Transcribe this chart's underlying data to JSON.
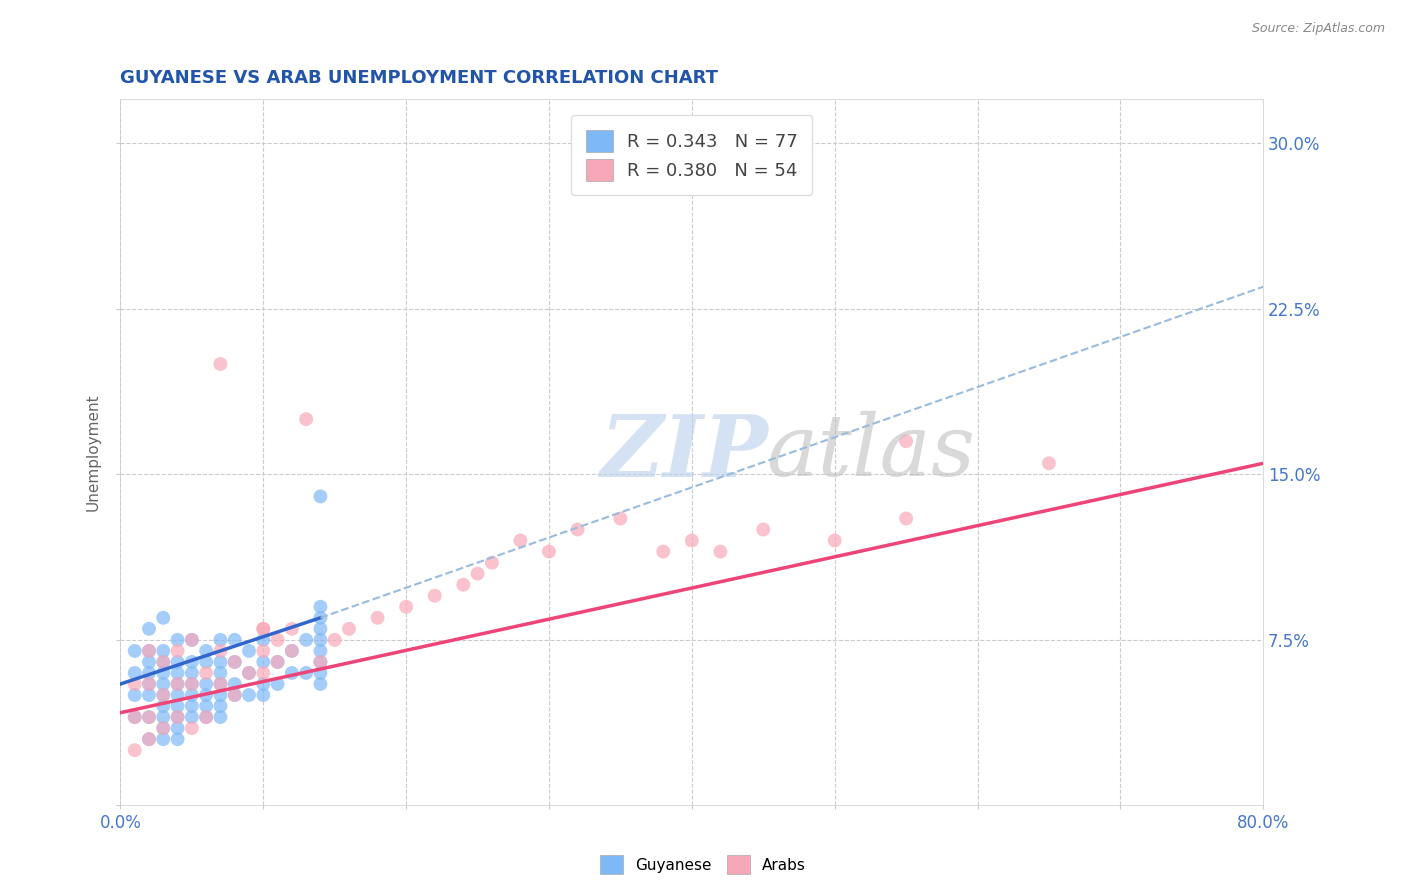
{
  "title": "GUYANESE VS ARAB UNEMPLOYMENT CORRELATION CHART",
  "source_text": "Source: ZipAtlas.com",
  "ylabel": "Unemployment",
  "xlim": [
    0.0,
    0.8
  ],
  "ylim": [
    0.0,
    0.32
  ],
  "xticks": [
    0.0,
    0.1,
    0.2,
    0.3,
    0.4,
    0.5,
    0.6,
    0.7,
    0.8
  ],
  "yticks": [
    0.0,
    0.075,
    0.15,
    0.225,
    0.3
  ],
  "yticklabels": [
    "",
    "7.5%",
    "15.0%",
    "22.5%",
    "30.0%"
  ],
  "grid_color": "#cccccc",
  "background_color": "#ffffff",
  "guyanese_color": "#7eb8f7",
  "arab_color": "#f7a8b8",
  "guyanese_line_color": "#3366cc",
  "arab_line_color": "#ee4477",
  "trendline_dashed_color": "#99bbdd",
  "legend_r1": "R = 0.343",
  "legend_n1": "N = 77",
  "legend_r2": "R = 0.380",
  "legend_n2": "N = 54",
  "title_color": "#2255aa",
  "label_color": "#4477cc",
  "guyanese_points_x": [
    0.01,
    0.01,
    0.01,
    0.01,
    0.02,
    0.02,
    0.02,
    0.02,
    0.02,
    0.02,
    0.02,
    0.02,
    0.03,
    0.03,
    0.03,
    0.03,
    0.03,
    0.03,
    0.03,
    0.03,
    0.03,
    0.03,
    0.04,
    0.04,
    0.04,
    0.04,
    0.04,
    0.04,
    0.04,
    0.04,
    0.04,
    0.05,
    0.05,
    0.05,
    0.05,
    0.05,
    0.05,
    0.05,
    0.06,
    0.06,
    0.06,
    0.06,
    0.06,
    0.06,
    0.07,
    0.07,
    0.07,
    0.07,
    0.07,
    0.07,
    0.07,
    0.08,
    0.08,
    0.08,
    0.08,
    0.09,
    0.09,
    0.09,
    0.1,
    0.1,
    0.1,
    0.1,
    0.11,
    0.11,
    0.12,
    0.12,
    0.13,
    0.13,
    0.14,
    0.14,
    0.14,
    0.14,
    0.14,
    0.14,
    0.14,
    0.14,
    0.14
  ],
  "guyanese_points_y": [
    0.04,
    0.05,
    0.06,
    0.07,
    0.03,
    0.04,
    0.05,
    0.055,
    0.06,
    0.065,
    0.07,
    0.08,
    0.03,
    0.035,
    0.04,
    0.045,
    0.05,
    0.055,
    0.06,
    0.065,
    0.07,
    0.085,
    0.03,
    0.035,
    0.04,
    0.045,
    0.05,
    0.055,
    0.06,
    0.065,
    0.075,
    0.04,
    0.045,
    0.05,
    0.055,
    0.06,
    0.065,
    0.075,
    0.04,
    0.045,
    0.05,
    0.055,
    0.065,
    0.07,
    0.04,
    0.045,
    0.05,
    0.055,
    0.06,
    0.065,
    0.075,
    0.05,
    0.055,
    0.065,
    0.075,
    0.05,
    0.06,
    0.07,
    0.05,
    0.055,
    0.065,
    0.075,
    0.055,
    0.065,
    0.06,
    0.07,
    0.06,
    0.075,
    0.14,
    0.055,
    0.06,
    0.065,
    0.07,
    0.075,
    0.08,
    0.085,
    0.09
  ],
  "arab_points_x": [
    0.01,
    0.01,
    0.01,
    0.02,
    0.02,
    0.02,
    0.02,
    0.03,
    0.03,
    0.03,
    0.04,
    0.04,
    0.04,
    0.05,
    0.05,
    0.05,
    0.06,
    0.06,
    0.07,
    0.07,
    0.07,
    0.08,
    0.08,
    0.09,
    0.1,
    0.1,
    0.1,
    0.11,
    0.11,
    0.12,
    0.12,
    0.13,
    0.14,
    0.15,
    0.16,
    0.18,
    0.2,
    0.22,
    0.24,
    0.25,
    0.26,
    0.28,
    0.3,
    0.32,
    0.35,
    0.38,
    0.4,
    0.42,
    0.45,
    0.5,
    0.55,
    0.65,
    0.55,
    0.1
  ],
  "arab_points_y": [
    0.025,
    0.04,
    0.055,
    0.03,
    0.04,
    0.055,
    0.07,
    0.035,
    0.05,
    0.065,
    0.04,
    0.055,
    0.07,
    0.035,
    0.055,
    0.075,
    0.04,
    0.06,
    0.055,
    0.07,
    0.2,
    0.05,
    0.065,
    0.06,
    0.06,
    0.07,
    0.08,
    0.065,
    0.075,
    0.07,
    0.08,
    0.175,
    0.065,
    0.075,
    0.08,
    0.085,
    0.09,
    0.095,
    0.1,
    0.105,
    0.11,
    0.12,
    0.115,
    0.125,
    0.13,
    0.115,
    0.12,
    0.115,
    0.125,
    0.12,
    0.13,
    0.155,
    0.165,
    0.08
  ],
  "blue_line_x": [
    0.0,
    0.14
  ],
  "blue_line_y": [
    0.055,
    0.085
  ],
  "dashed_line_x": [
    0.14,
    0.8
  ],
  "dashed_line_y": [
    0.085,
    0.235
  ],
  "pink_line_x": [
    0.0,
    0.8
  ],
  "pink_line_y": [
    0.042,
    0.155
  ]
}
